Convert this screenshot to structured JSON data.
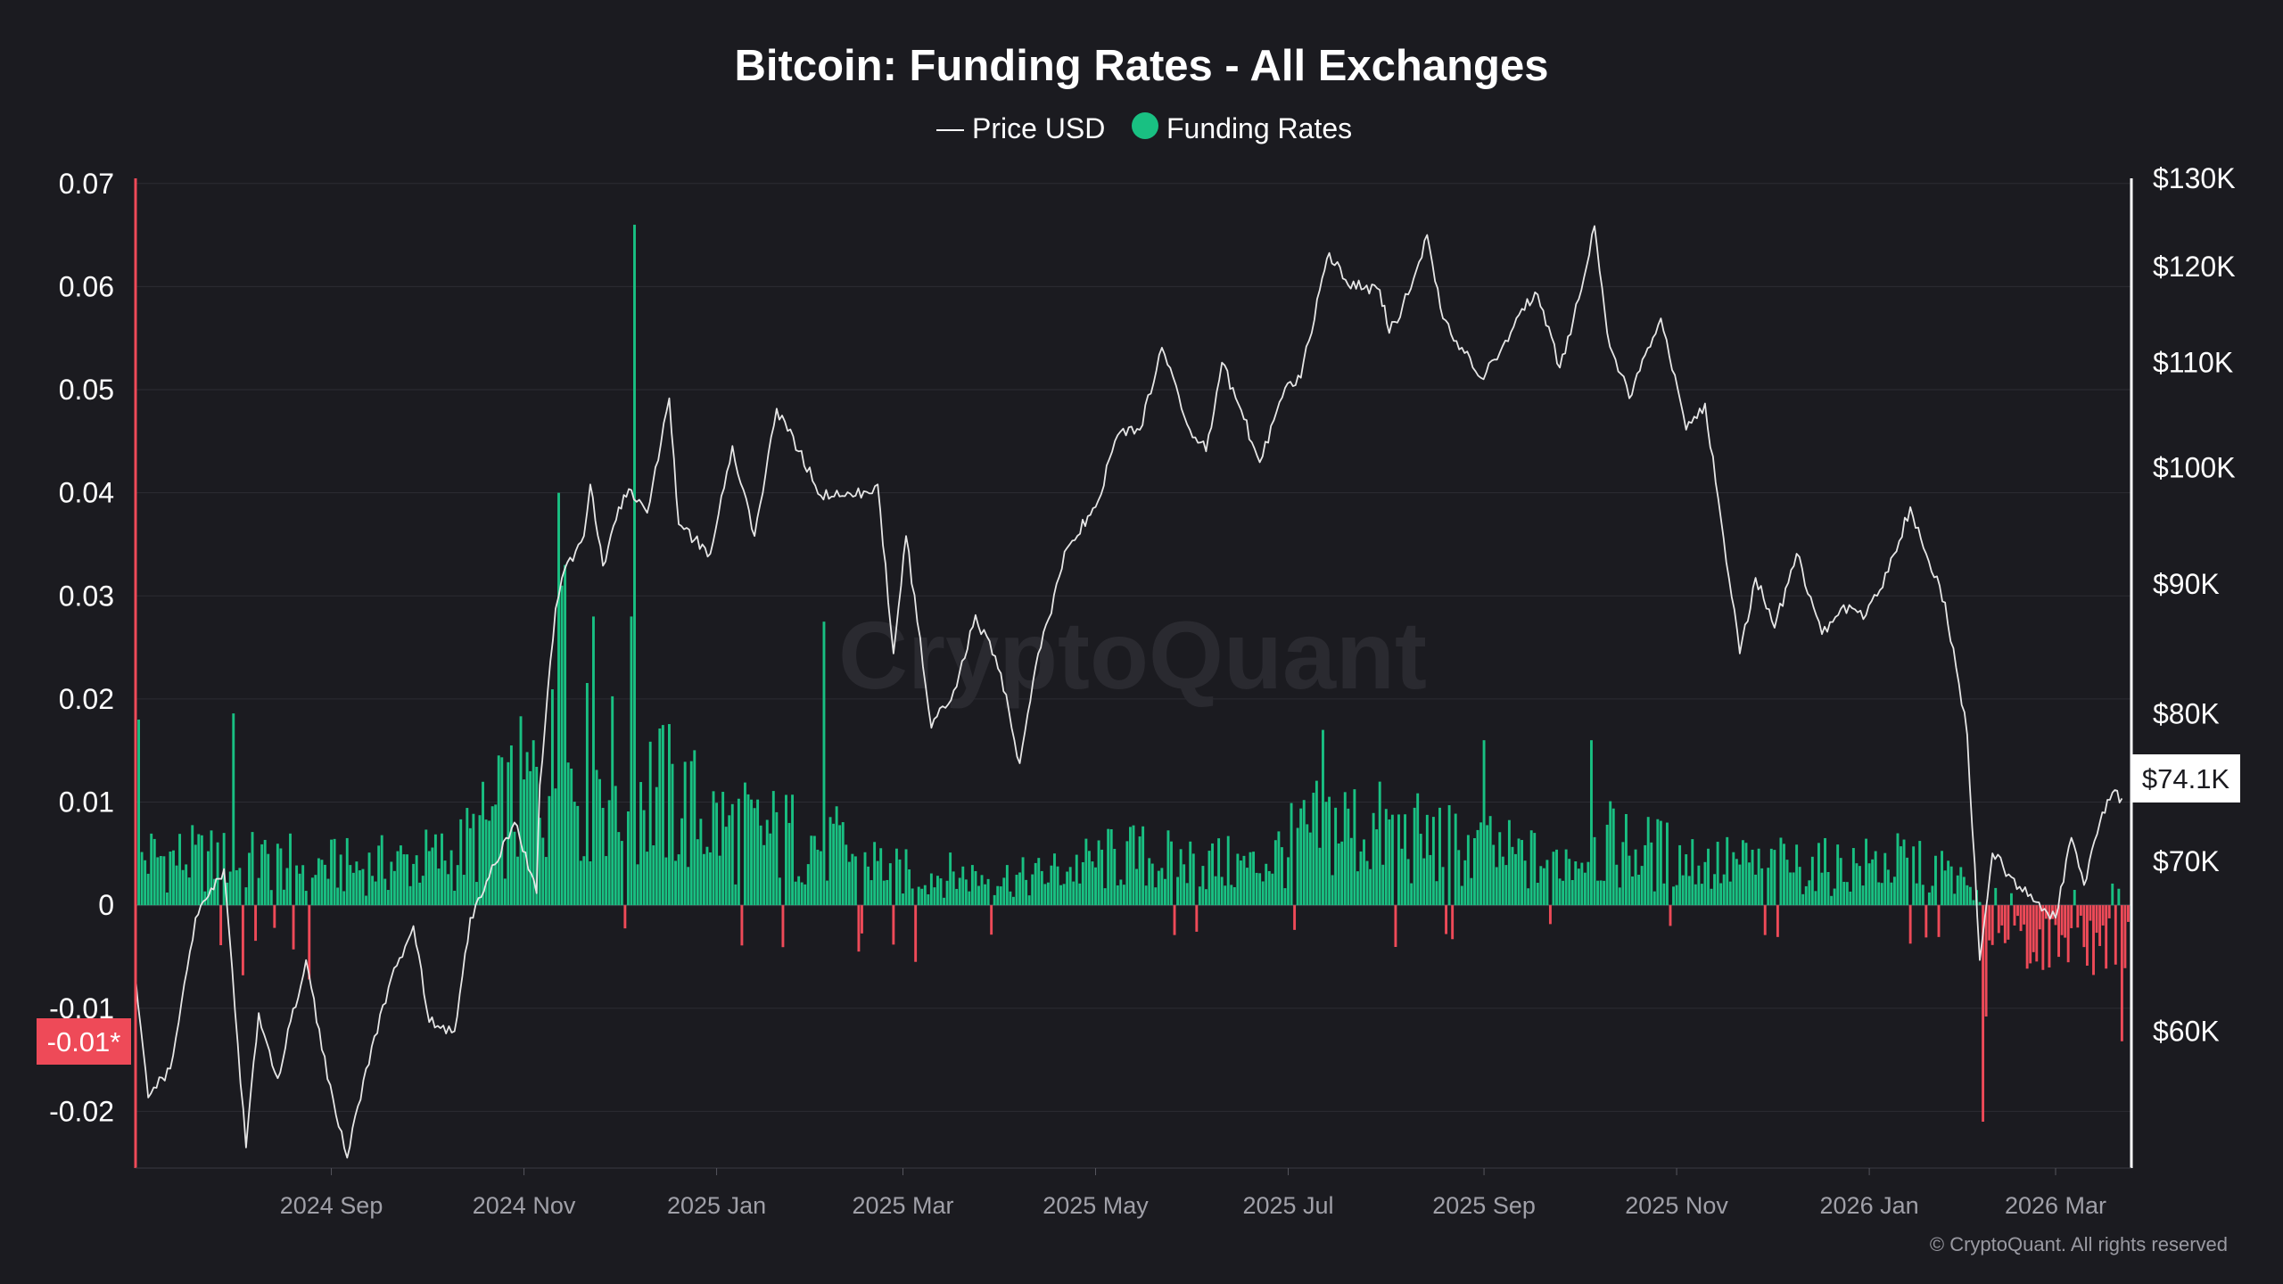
{
  "colors": {
    "background": "#1b1b20",
    "positive": "#19c082",
    "negative": "#ee4a58",
    "price_line": "#e6e6e6",
    "grid": "#2c2c33",
    "axis_left_line": "#ee4a58",
    "axis_right_line": "#ffffff"
  },
  "watermark": "CryptoQuant",
  "copyright": "© CryptoQuant. All rights reserved",
  "chart_data": {
    "type": "bar",
    "title": "Bitcoin: Funding Rates - All Exchanges",
    "legend": {
      "placement": "top-center",
      "items": [
        {
          "label": "Price USD",
          "marker": "line"
        },
        {
          "label": "Funding Rates",
          "marker": "dot"
        }
      ]
    },
    "grid": true,
    "x_axis": {
      "type": "date",
      "range": [
        "2024-07-01",
        "2026-03-25"
      ],
      "ticks": [
        {
          "date": "2024-09-01",
          "label": "2024 Sep"
        },
        {
          "date": "2024-11-01",
          "label": "2024 Nov"
        },
        {
          "date": "2025-01-01",
          "label": "2025 Jan"
        },
        {
          "date": "2025-03-01",
          "label": "2025 Mar"
        },
        {
          "date": "2025-05-01",
          "label": "2025 May"
        },
        {
          "date": "2025-07-01",
          "label": "2025 Jul"
        },
        {
          "date": "2025-09-01",
          "label": "2025 Sep"
        },
        {
          "date": "2025-11-01",
          "label": "2025 Nov"
        },
        {
          "date": "2026-01-01",
          "label": "2026 Jan"
        },
        {
          "date": "2026-03-01",
          "label": "2026 Mar"
        }
      ]
    },
    "y_left": {
      "name": "Funding Rates",
      "range": [
        -0.0255,
        0.0705
      ],
      "ticks": [
        {
          "value": 0.07,
          "label": "0.07"
        },
        {
          "value": 0.06,
          "label": "0.06"
        },
        {
          "value": 0.05,
          "label": "0.05"
        },
        {
          "value": 0.04,
          "label": "0.04"
        },
        {
          "value": 0.03,
          "label": "0.03"
        },
        {
          "value": 0.02,
          "label": "0.02"
        },
        {
          "value": 0.01,
          "label": "0.01"
        },
        {
          "value": 0,
          "label": "0"
        },
        {
          "value": -0.01,
          "label": "-0.01"
        },
        {
          "value": -0.02,
          "label": "-0.02"
        }
      ],
      "current_label": "-0.01*"
    },
    "y_right": {
      "name": "Price USD",
      "scale": "log",
      "range": [
        53000,
        130000
      ],
      "ticks": [
        {
          "value": 130000,
          "label": "$130K"
        },
        {
          "value": 120000,
          "label": "$120K"
        },
        {
          "value": 110000,
          "label": "$110K"
        },
        {
          "value": 100000,
          "label": "$100K"
        },
        {
          "value": 90000,
          "label": "$90K"
        },
        {
          "value": 80000,
          "label": "$80K"
        },
        {
          "value": 70000,
          "label": "$70K"
        },
        {
          "value": 60000,
          "label": "$60K"
        }
      ],
      "current_label": "$74.1K"
    },
    "price_series": [
      [
        "2024-07-01",
        63000
      ],
      [
        "2024-07-05",
        56500
      ],
      [
        "2024-07-12",
        58000
      ],
      [
        "2024-07-20",
        66500
      ],
      [
        "2024-07-29",
        69500
      ],
      [
        "2024-08-05",
        54000
      ],
      [
        "2024-08-09",
        61000
      ],
      [
        "2024-08-15",
        57500
      ],
      [
        "2024-08-24",
        64000
      ],
      [
        "2024-08-29",
        59000
      ],
      [
        "2024-09-06",
        53500
      ],
      [
        "2024-09-12",
        58000
      ],
      [
        "2024-09-20",
        63000
      ],
      [
        "2024-09-27",
        66000
      ],
      [
        "2024-10-02",
        60500
      ],
      [
        "2024-10-10",
        60000
      ],
      [
        "2024-10-15",
        66500
      ],
      [
        "2024-10-21",
        69000
      ],
      [
        "2024-10-29",
        72500
      ],
      [
        "2024-11-05",
        68000
      ],
      [
        "2024-11-06",
        75000
      ],
      [
        "2024-11-11",
        88000
      ],
      [
        "2024-11-13",
        90500
      ],
      [
        "2024-11-20",
        94000
      ],
      [
        "2024-11-22",
        98500
      ],
      [
        "2024-11-26",
        91500
      ],
      [
        "2024-12-01",
        96500
      ],
      [
        "2024-12-05",
        98000
      ],
      [
        "2024-12-10",
        96000
      ],
      [
        "2024-12-17",
        106500
      ],
      [
        "2024-12-20",
        95000
      ],
      [
        "2024-12-30",
        92500
      ],
      [
        "2025-01-06",
        102000
      ],
      [
        "2025-01-13",
        94000
      ],
      [
        "2025-01-20",
        105500
      ],
      [
        "2025-01-27",
        101500
      ],
      [
        "2025-02-03",
        97500
      ],
      [
        "2025-02-14",
        97500
      ],
      [
        "2025-02-21",
        98500
      ],
      [
        "2025-02-26",
        84500
      ],
      [
        "2025-03-02",
        94000
      ],
      [
        "2025-03-10",
        79000
      ],
      [
        "2025-03-18",
        82000
      ],
      [
        "2025-03-24",
        87500
      ],
      [
        "2025-04-01",
        83000
      ],
      [
        "2025-04-07",
        76500
      ],
      [
        "2025-04-12",
        83500
      ],
      [
        "2025-04-22",
        93000
      ],
      [
        "2025-05-01",
        96500
      ],
      [
        "2025-05-08",
        103000
      ],
      [
        "2025-05-15",
        103500
      ],
      [
        "2025-05-22",
        111500
      ],
      [
        "2025-05-30",
        104000
      ],
      [
        "2025-06-05",
        101500
      ],
      [
        "2025-06-10",
        110000
      ],
      [
        "2025-06-17",
        104500
      ],
      [
        "2025-06-22",
        100500
      ],
      [
        "2025-06-30",
        107500
      ],
      [
        "2025-07-05",
        108500
      ],
      [
        "2025-07-11",
        117500
      ],
      [
        "2025-07-14",
        121500
      ],
      [
        "2025-07-20",
        118000
      ],
      [
        "2025-07-30",
        117500
      ],
      [
        "2025-08-02",
        113000
      ],
      [
        "2025-08-08",
        117000
      ],
      [
        "2025-08-14",
        123500
      ],
      [
        "2025-08-19",
        114500
      ],
      [
        "2025-08-25",
        111500
      ],
      [
        "2025-08-31",
        108500
      ],
      [
        "2025-09-06",
        111000
      ],
      [
        "2025-09-13",
        115500
      ],
      [
        "2025-09-18",
        117000
      ],
      [
        "2025-09-25",
        109500
      ],
      [
        "2025-10-01",
        116500
      ],
      [
        "2025-10-06",
        124500
      ],
      [
        "2025-10-10",
        113000
      ],
      [
        "2025-10-17",
        106500
      ],
      [
        "2025-10-27",
        114500
      ],
      [
        "2025-11-04",
        103500
      ],
      [
        "2025-11-10",
        106000
      ],
      [
        "2025-11-15",
        95500
      ],
      [
        "2025-11-21",
        84500
      ],
      [
        "2025-11-26",
        90500
      ],
      [
        "2025-12-02",
        86500
      ],
      [
        "2025-12-09",
        92500
      ],
      [
        "2025-12-17",
        86000
      ],
      [
        "2025-12-23",
        88000
      ],
      [
        "2025-12-31",
        87500
      ],
      [
        "2026-01-07",
        91000
      ],
      [
        "2026-01-14",
        96500
      ],
      [
        "2026-01-19",
        92500
      ],
      [
        "2026-01-25",
        88500
      ],
      [
        "2026-02-01",
        78500
      ],
      [
        "2026-02-05",
        64000
      ],
      [
        "2026-02-09",
        70500
      ],
      [
        "2026-02-15",
        69000
      ],
      [
        "2026-02-22",
        67500
      ],
      [
        "2026-03-01",
        66500
      ],
      [
        "2026-03-06",
        71500
      ],
      [
        "2026-03-10",
        68500
      ],
      [
        "2026-03-15",
        72500
      ],
      [
        "2026-03-19",
        74500
      ],
      [
        "2026-03-22",
        74100
      ]
    ]
  }
}
